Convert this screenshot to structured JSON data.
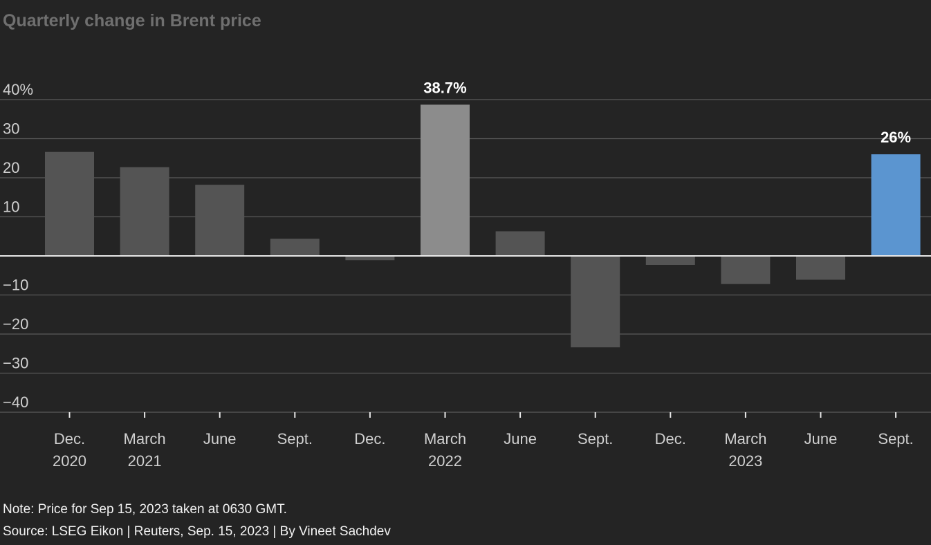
{
  "chart_data": {
    "type": "bar",
    "title": "Quarterly change in Brent price",
    "categories": [
      "Dec. 2020",
      "March 2021",
      "June",
      "Sept.",
      "Dec.",
      "March 2022",
      "June",
      "Sept.",
      "Dec.",
      "March 2023",
      "June",
      "Sept."
    ],
    "category_lines": [
      [
        "Dec.",
        "2020"
      ],
      [
        "March",
        "2021"
      ],
      [
        "June"
      ],
      [
        "Sept."
      ],
      [
        "Dec."
      ],
      [
        "March",
        "2022"
      ],
      [
        "June"
      ],
      [
        "Sept."
      ],
      [
        "Dec."
      ],
      [
        "March",
        "2023"
      ],
      [
        "June"
      ],
      [
        "Sept."
      ]
    ],
    "values": [
      26.6,
      22.7,
      18.2,
      4.4,
      -1.1,
      38.7,
      6.3,
      -23.4,
      -2.3,
      -7.2,
      -6.1,
      26.0
    ],
    "ylim": [
      -40,
      40
    ],
    "yticks": [
      40,
      30,
      20,
      10,
      0,
      -10,
      -20,
      -30,
      -40
    ],
    "ytick_labels": [
      "40%",
      "30",
      "20",
      "10",
      "",
      "−10",
      "−20",
      "−30",
      "−40"
    ],
    "data_labels": [
      {
        "index": 5,
        "text": "38.7%"
      },
      {
        "index": 11,
        "text": "26%"
      }
    ],
    "grid": true,
    "colors": {
      "bar": "#545454",
      "highlight_max": "#8c8c8c",
      "highlight_latest": "#5b95d0",
      "grid": "#5a5a5a",
      "axis": "#e8e8e8",
      "tick_label": "#d0d0d0",
      "data_label": "#ffffff"
    }
  },
  "footer": {
    "note": "Note: Price for Sep 15, 2023 taken at 0630 GMT.",
    "source": "Source: LSEG Eikon | Reuters, Sep. 15, 2023 | By Vineet Sachdev"
  }
}
